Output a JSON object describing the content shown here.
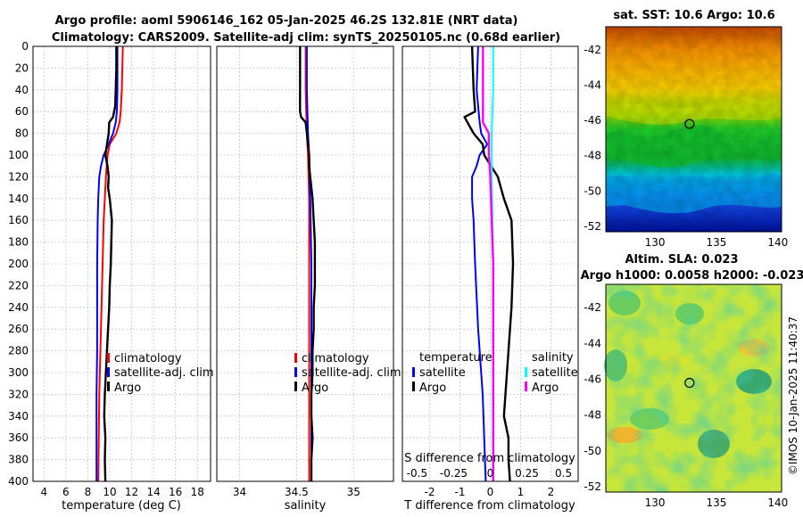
{
  "title_line1": "Argo profile: aoml 5906146_162 05-Jan-2025 46.2S 132.81E (NRT data)",
  "title_line2": "Climatology: CARS2009. Satellite-adj clim: synTS_20250105.nc (0.68d earlier)",
  "credit": "©IMOS 10-Jan-2025 11:40:37",
  "colors": {
    "climatology": "#ff0000",
    "satellite": "#0000ff",
    "argo": "#000000",
    "sal_satellite": "#00ffff",
    "sal_diff": "#ff00ff"
  },
  "chart_data": [
    {
      "type": "line",
      "name": "temperature-profile",
      "xlabel": "temperature (deg C)",
      "ylabel": "depth",
      "xlim": [
        3,
        19.2
      ],
      "ylim": [
        0,
        400
      ],
      "xticks": [
        4,
        6,
        8,
        10,
        12,
        14,
        16,
        18
      ],
      "yticks": [
        0,
        20,
        40,
        60,
        80,
        100,
        120,
        140,
        160,
        180,
        200,
        220,
        240,
        260,
        280,
        300,
        320,
        340,
        360,
        380,
        400
      ],
      "legend": [
        "climatology",
        "satellite-adj. clim",
        "Argo"
      ],
      "series": [
        {
          "name": "climatology",
          "color": "#ff0000",
          "depth": [
            0,
            20,
            40,
            60,
            70,
            80,
            90,
            100,
            120,
            140,
            160,
            180,
            200,
            240,
            280,
            320,
            360,
            400
          ],
          "values": [
            11.2,
            11.15,
            11.1,
            11.0,
            10.9,
            10.6,
            10.0,
            9.8,
            9.65,
            9.55,
            9.45,
            9.4,
            9.35,
            9.25,
            9.15,
            9.05,
            9.0,
            8.95
          ]
        },
        {
          "name": "satellite-adj. clim",
          "color": "#0000ff",
          "depth": [
            0,
            20,
            40,
            60,
            70,
            80,
            90,
            100,
            110,
            120,
            140,
            160,
            200,
            240,
            280,
            320,
            360,
            400
          ],
          "values": [
            10.7,
            10.7,
            10.7,
            10.65,
            10.55,
            10.3,
            9.9,
            9.45,
            9.2,
            9.05,
            8.95,
            8.9,
            8.85,
            8.85,
            8.85,
            8.8,
            8.8,
            8.8
          ]
        },
        {
          "name": "Argo",
          "color": "#000000",
          "depth": [
            0,
            20,
            40,
            55,
            65,
            70,
            80,
            90,
            100,
            110,
            120,
            130,
            140,
            150,
            160,
            180,
            200,
            220,
            240,
            260,
            280,
            300,
            320,
            340,
            360,
            380,
            400
          ],
          "values": [
            10.6,
            10.6,
            10.55,
            10.5,
            10.3,
            9.95,
            9.9,
            9.75,
            9.6,
            9.8,
            9.9,
            9.85,
            10.0,
            10.1,
            10.2,
            10.15,
            10.1,
            10.0,
            9.95,
            9.85,
            9.75,
            9.65,
            9.55,
            9.5,
            9.6,
            9.55,
            9.6
          ]
        }
      ]
    },
    {
      "type": "line",
      "name": "salinity-profile",
      "xlabel": "salinity",
      "ylabel": "depth",
      "xlim": [
        33.8,
        35.35
      ],
      "ylim": [
        0,
        400
      ],
      "xticks": [
        34,
        34.5,
        35
      ],
      "xticklabels": [
        "34",
        "34.5",
        "35"
      ],
      "legend": [
        "climatology",
        "satellite-adj. clim",
        "Argo"
      ],
      "series": [
        {
          "name": "climatology",
          "color": "#ff0000",
          "depth": [
            0,
            40,
            80,
            100,
            140,
            200,
            260,
            320,
            360,
            400
          ],
          "values": [
            34.58,
            34.58,
            34.59,
            34.6,
            34.61,
            34.61,
            34.61,
            34.61,
            34.61,
            34.61
          ]
        },
        {
          "name": "satellite-adj. clim",
          "color": "#0000ff",
          "depth": [
            0,
            40,
            80,
            100,
            140,
            200,
            260,
            320,
            360,
            400
          ],
          "values": [
            34.59,
            34.59,
            34.6,
            34.61,
            34.62,
            34.63,
            34.63,
            34.63,
            34.63,
            34.63
          ]
        },
        {
          "name": "Argo",
          "color": "#000000",
          "depth": [
            0,
            20,
            40,
            60,
            65,
            70,
            80,
            90,
            100,
            110,
            120,
            140,
            160,
            180,
            200,
            220,
            240,
            260,
            280,
            300,
            320,
            340,
            360,
            380,
            400
          ],
          "values": [
            34.53,
            34.53,
            34.53,
            34.53,
            34.54,
            34.58,
            34.59,
            34.6,
            34.61,
            34.61,
            34.62,
            34.64,
            34.65,
            34.66,
            34.66,
            34.66,
            34.65,
            34.65,
            34.64,
            34.64,
            34.63,
            34.63,
            34.64,
            34.63,
            34.63
          ]
        }
      ]
    },
    {
      "type": "line",
      "name": "difference-profile",
      "xlabel": "T difference from climatology",
      "ylabel": "depth",
      "xlim": [
        -2.9,
        2.9
      ],
      "ylim": [
        0,
        400
      ],
      "xticks": [
        -2,
        -1,
        0,
        1,
        2
      ],
      "xticklabels": [
        "-2",
        "-1",
        "0",
        "1",
        "2"
      ],
      "secondary_xlabel": "S difference from climatology",
      "secondary_xticks": [
        -0.5,
        -0.25,
        0,
        0.25,
        0.5
      ],
      "secondary_xticklabels": [
        "-0.5",
        "-0.25",
        "0",
        "0.25",
        "0.5"
      ],
      "legend_temperature_title": "temperature",
      "legend_salinity_title": "salinity",
      "legend_satellite": "satellite",
      "legend_argo": "Argo",
      "series": [
        {
          "name": "T satellite",
          "color": "#0000ff",
          "depth": [
            0,
            40,
            70,
            80,
            90,
            100,
            110,
            120,
            140,
            160,
            200,
            260,
            320,
            400
          ],
          "values": [
            -0.4,
            -0.45,
            -0.35,
            -0.3,
            -0.1,
            -0.35,
            -0.45,
            -0.6,
            -0.6,
            -0.55,
            -0.5,
            -0.4,
            -0.25,
            -0.15
          ]
        },
        {
          "name": "T Argo",
          "color": "#000000",
          "depth": [
            0,
            40,
            60,
            65,
            75,
            80,
            90,
            100,
            120,
            140,
            160,
            200,
            240,
            280,
            320,
            340,
            360,
            380,
            400
          ],
          "values": [
            -0.6,
            -0.55,
            -0.5,
            -0.85,
            -0.65,
            -0.55,
            -0.25,
            -0.2,
            0.25,
            0.45,
            0.7,
            0.75,
            0.7,
            0.6,
            0.5,
            0.45,
            0.6,
            0.6,
            0.65
          ]
        },
        {
          "name": "S satellite",
          "color": "#00ffff",
          "depth": [
            0,
            40,
            80,
            120,
            200,
            280,
            360,
            400
          ],
          "values": [
            0.02,
            0.02,
            0.01,
            0.01,
            0.02,
            0.02,
            0.02,
            0.02
          ]
        },
        {
          "name": "S Argo",
          "color": "#ff00ff",
          "depth": [
            0,
            40,
            70,
            80,
            100,
            120,
            160,
            200,
            260,
            300,
            340,
            360,
            400
          ],
          "values": [
            -0.05,
            -0.05,
            -0.05,
            -0.01,
            -0.01,
            0.0,
            0.01,
            0.02,
            0.02,
            0.02,
            0.02,
            0.02,
            0.02
          ]
        }
      ]
    },
    {
      "type": "heatmap",
      "name": "sst-map",
      "title": "sat. SST: 10.6 Argo: 10.6",
      "xlim": [
        126,
        140.3
      ],
      "ylim": [
        -52.3,
        -40.7
      ],
      "xticks": [
        130,
        135,
        140
      ],
      "yticks": [
        -42,
        -44,
        -46,
        -48,
        -50,
        -52
      ],
      "marker": {
        "lon": 132.81,
        "lat": -46.2
      }
    },
    {
      "type": "heatmap",
      "name": "sla-map",
      "title_line1": "Altim. SLA: 0.023",
      "title_line2": "Argo h1000: 0.0058 h2000: -0.023",
      "xlim": [
        126,
        140.3
      ],
      "ylim": [
        -52.3,
        -40.7
      ],
      "xticks": [
        130,
        135,
        140
      ],
      "yticks": [
        -42,
        -44,
        -46,
        -48,
        -50,
        -52
      ],
      "marker": {
        "lon": 132.81,
        "lat": -46.2
      }
    }
  ]
}
